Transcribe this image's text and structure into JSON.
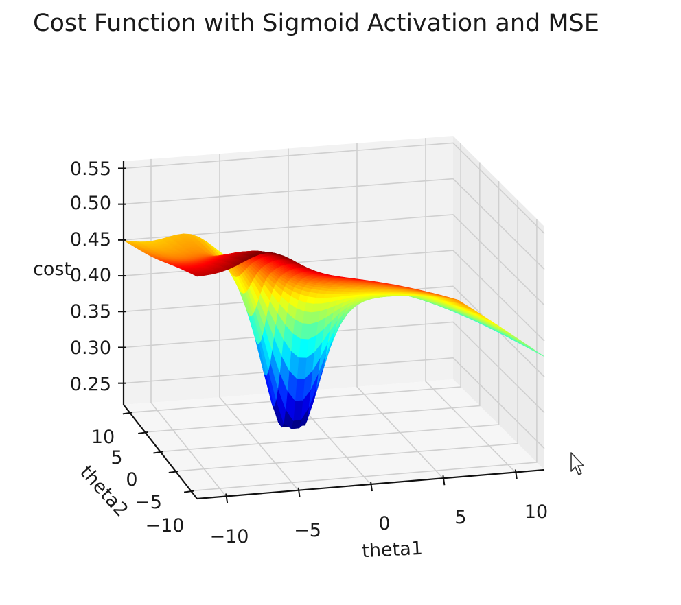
{
  "chart_data": {
    "type": "surface3d",
    "title": "Cost Function with Sigmoid Activation and MSE",
    "xlabel": "theta1",
    "ylabel": "theta2",
    "zlabel": "cost",
    "xlim": [
      -12,
      12
    ],
    "ylim": [
      -12,
      12
    ],
    "zlim": [
      0.22,
      0.56
    ],
    "x_ticks": [
      -10,
      -5,
      0,
      5,
      10
    ],
    "y_ticks": [
      -10,
      -5,
      0,
      5,
      10
    ],
    "z_ticks": [
      0.25,
      0.3,
      0.35,
      0.4,
      0.45,
      0.5,
      0.55
    ],
    "x_tick_labels": [
      "−10",
      "−5",
      "0",
      "5",
      "10"
    ],
    "y_tick_labels": [
      "−10",
      "−5",
      "0",
      "5",
      "10"
    ],
    "z_tick_labels": [
      "0.25",
      "0.30",
      "0.35",
      "0.40",
      "0.45",
      "0.50",
      "0.55"
    ],
    "colormap": "jet",
    "grid": true,
    "surface": {
      "description_points": [
        {
          "theta1": -12,
          "theta2": -12,
          "cost": 0.55
        },
        {
          "theta1": -12,
          "theta2": 12,
          "cost": 0.42
        },
        {
          "theta1": 12,
          "theta2": -12,
          "cost": 0.45
        },
        {
          "theta1": 12,
          "theta2": 12,
          "cost": 0.33
        },
        {
          "theta1": -2,
          "theta2": 3,
          "cost": 0.23
        }
      ],
      "minimum": {
        "theta1": -2,
        "theta2": 3,
        "cost": 0.23
      }
    }
  }
}
